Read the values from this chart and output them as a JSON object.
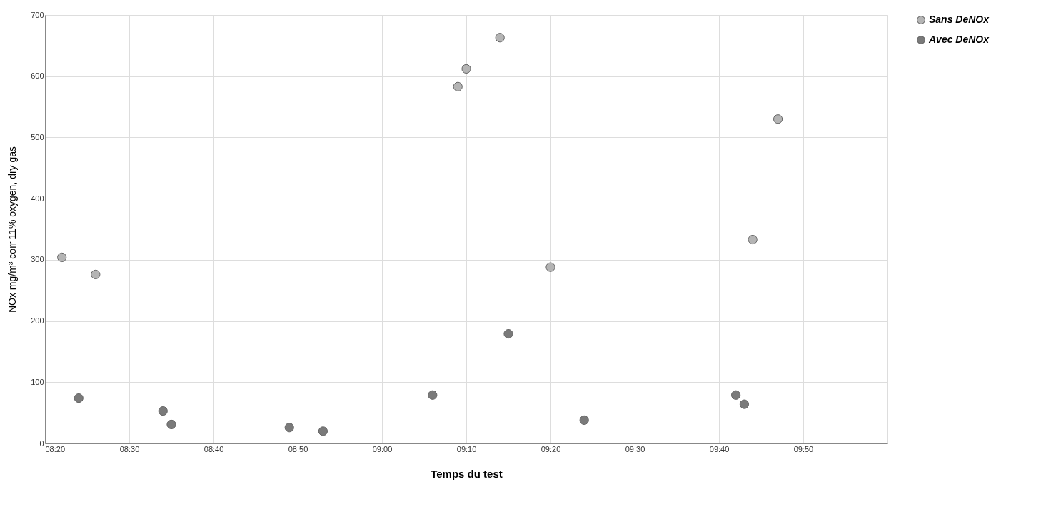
{
  "chart_data": {
    "type": "scatter",
    "xlabel": "Temps du test",
    "ylabel": "NOx  mg/m³ corr 11% oxygen, dry gas",
    "xlim": [
      8.3333,
      10
    ],
    "ylim": [
      0,
      700
    ],
    "xticks": [
      {
        "value": 8.3333,
        "label": "08:20"
      },
      {
        "value": 8.5,
        "label": "08:30"
      },
      {
        "value": 8.6667,
        "label": "08:40"
      },
      {
        "value": 8.8333,
        "label": "08:50"
      },
      {
        "value": 9.0,
        "label": "09:00"
      },
      {
        "value": 9.1667,
        "label": "09:10"
      },
      {
        "value": 9.3333,
        "label": "09:20"
      },
      {
        "value": 9.5,
        "label": "09:30"
      },
      {
        "value": 9.6667,
        "label": "09:40"
      },
      {
        "value": 9.8333,
        "label": "09:50"
      }
    ],
    "yticks": [
      0,
      100,
      200,
      300,
      400,
      500,
      600,
      700
    ],
    "grid": true,
    "legend": "right",
    "marker": "circle",
    "series": [
      {
        "name": "Sans DeNOx",
        "color": "#b4b4b4",
        "x": [
          8.3667,
          8.4333,
          9.15,
          9.1667,
          9.2333,
          9.3333,
          9.7333,
          9.7833
        ],
        "values": [
          304,
          276,
          583,
          612,
          663,
          288,
          333,
          530
        ]
      },
      {
        "name": "Avec DeNOx",
        "color": "#7a7a7a",
        "x": [
          8.4,
          8.5667,
          8.5833,
          8.8167,
          8.8833,
          9.1,
          9.25,
          9.4,
          9.7,
          9.7167
        ],
        "values": [
          74,
          53,
          31,
          26,
          20,
          79,
          179,
          38,
          79,
          64
        ]
      }
    ]
  }
}
